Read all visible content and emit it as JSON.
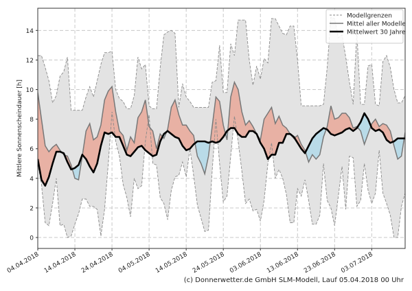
{
  "chart_data": {
    "type": "area",
    "title": "",
    "xlabel": "",
    "ylabel": "Mittlere Sonnenscheindauer [h]",
    "start_date": "04.04.2018",
    "x_tick_labels": [
      "04.04.2018",
      "14.04.2018",
      "24.04.2018",
      "04.05.2018",
      "14.05.2018",
      "24.05.2018",
      "03.06.2018",
      "13.06.2018",
      "23.06.2018",
      "03.07.2018"
    ],
    "y_ticks": [
      0,
      2,
      4,
      6,
      8,
      10,
      12,
      14
    ],
    "ylim": [
      -0.74,
      15.5
    ],
    "xlim": [
      "04.04.2018",
      "12.07.2018"
    ],
    "grid": true,
    "legend_position": "top-right",
    "legend": [
      "Modellgrenzen",
      "Mittel aller Modelle",
      "Mittelwert 30 Jahre"
    ],
    "colors": {
      "range_fill": "#e3e3e3",
      "above": "#e8b1a4",
      "below": "#b9dbe8",
      "model_mean": "#777777",
      "climate_mean": "#000000",
      "bounds": "#8a8a8a"
    },
    "series": [
      {
        "name": "Modellgrenzen (max)",
        "values": [
          12.3,
          12.3,
          11.5,
          10.6,
          9.1,
          9.6,
          10.9,
          11.2,
          12.2,
          8.6,
          8.6,
          8.6,
          8.6,
          9.5,
          10.2,
          9.5,
          10.6,
          11.7,
          12.5,
          12.5,
          12.6,
          10.0,
          9.4,
          9.2,
          8.7,
          8.7,
          9.6,
          12.2,
          11.4,
          11.7,
          8.9,
          8.7,
          8.7,
          11.5,
          13.7,
          13.9,
          14.0,
          13.8,
          8.8,
          10.4,
          9.5,
          9.2,
          8.8,
          8.8,
          8.8,
          8.8,
          8.8,
          10.5,
          10.6,
          13.0,
          9.8,
          9.8,
          13.1,
          12.3,
          14.7,
          14.7,
          14.7,
          12.0,
          10.3,
          11.6,
          10.7,
          12.1,
          11.8,
          14.8,
          14.8,
          14.3,
          13.8,
          13.7,
          14.3,
          14.3,
          12.0,
          8.9,
          8.9,
          8.9,
          8.9,
          8.9,
          8.9,
          9.0,
          11.5,
          14.9,
          14.8,
          13.5,
          13.7,
          12.2,
          10.5,
          9.0,
          13.9,
          9.0,
          9.0,
          11.6,
          11.7,
          9.0,
          8.9,
          11.9,
          12.3,
          11.5,
          10.0,
          9.1,
          9.1,
          9.6
        ]
      },
      {
        "name": "Modellgrenzen (min)",
        "values": [
          5.0,
          3.6,
          1.0,
          0.8,
          2.3,
          4.0,
          0.8,
          0.9,
          0.0,
          0.1,
          0.9,
          1.6,
          2.6,
          2.6,
          2.1,
          2.1,
          1.9,
          0.1,
          1.9,
          5.0,
          8.5,
          6.5,
          5.5,
          3.6,
          2.7,
          1.4,
          4.0,
          3.3,
          3.5,
          6.5,
          8.3,
          5.0,
          4.9,
          2.7,
          2.3,
          1.2,
          3.2,
          4.1,
          4.2,
          5.1,
          4.1,
          6.0,
          4.2,
          2.2,
          1.3,
          0.4,
          0.5,
          4.5,
          8.0,
          5.0,
          2.4,
          2.8,
          5.5,
          8.2,
          6.5,
          4.5,
          2.3,
          2.6,
          1.8,
          1.9,
          1.1,
          2.5,
          5.0,
          6.4,
          4.0,
          4.6,
          4.0,
          2.9,
          1.0,
          1.0,
          3.3,
          2.8,
          3.9,
          2.5,
          0.9,
          0.9,
          1.5,
          5.0,
          2.5,
          2.0,
          0.8,
          2.8,
          4.8,
          1.9,
          5.5,
          5.4,
          2.1,
          2.5,
          5.0,
          3.2,
          2.3,
          3.0,
          5.9,
          3.0,
          2.3,
          1.5,
          0.0,
          0.0,
          2.1,
          3.0
        ]
      },
      {
        "name": "Mittel aller Modelle",
        "values": [
          9.8,
          8.0,
          6.2,
          5.8,
          6.1,
          6.3,
          5.9,
          5.6,
          5.5,
          4.9,
          4.0,
          3.9,
          5.5,
          7.2,
          7.7,
          6.6,
          6.8,
          7.6,
          9.3,
          9.9,
          10.2,
          8.5,
          7.2,
          6.9,
          5.9,
          6.8,
          6.4,
          8.1,
          8.5,
          9.3,
          7.5,
          7.2,
          6.0,
          7.0,
          6.7,
          7.3,
          8.8,
          9.3,
          8.3,
          7.6,
          7.6,
          7.2,
          6.9,
          5.5,
          5.0,
          4.3,
          5.5,
          7.5,
          9.5,
          9.2,
          7.6,
          6.6,
          9.5,
          10.5,
          10.0,
          8.5,
          7.6,
          7.9,
          7.5,
          7.0,
          6.6,
          8.0,
          8.4,
          8.8,
          7.7,
          8.2,
          7.6,
          7.4,
          7.0,
          6.7,
          6.9,
          6.3,
          5.9,
          5.1,
          5.6,
          5.3,
          5.6,
          6.8,
          7.5,
          8.9,
          8.0,
          8.1,
          8.4,
          8.4,
          8.1,
          7.4,
          7.5,
          7.2,
          6.3,
          7.0,
          7.7,
          8.0,
          7.5,
          7.7,
          7.6,
          7.2,
          6.2,
          5.3,
          5.5,
          7.1
        ]
      },
      {
        "name": "Mittelwert 30 Jahre",
        "values": [
          5.3,
          3.9,
          3.5,
          4.1,
          5.0,
          5.8,
          5.8,
          5.7,
          5.1,
          4.6,
          4.7,
          4.9,
          5.6,
          5.3,
          4.8,
          4.4,
          5.0,
          6.2,
          7.1,
          7.0,
          7.1,
          6.8,
          6.8,
          6.2,
          5.6,
          5.5,
          5.8,
          6.1,
          6.2,
          5.9,
          5.7,
          5.5,
          5.6,
          6.5,
          7.0,
          7.2,
          7.0,
          6.8,
          6.7,
          6.2,
          5.9,
          6.0,
          6.3,
          6.5,
          6.5,
          6.5,
          6.4,
          6.5,
          6.4,
          6.5,
          6.8,
          7.2,
          7.4,
          7.4,
          7.0,
          6.8,
          6.8,
          7.2,
          7.2,
          7.0,
          6.4,
          6.0,
          5.3,
          5.6,
          5.6,
          6.4,
          6.4,
          7.0,
          7.0,
          6.8,
          6.4,
          6.0,
          5.7,
          6.2,
          6.7,
          7.0,
          7.2,
          7.4,
          7.3,
          7.0,
          6.9,
          7.0,
          7.1,
          7.3,
          7.4,
          7.2,
          7.4,
          7.8,
          8.4,
          8.0,
          7.4,
          7.2,
          7.3,
          7.1,
          6.6,
          6.4,
          6.5,
          6.7,
          6.7,
          6.7
        ]
      }
    ]
  },
  "footer": "(c) Donnerwetter.de GmbH SLM-Modell, Lauf 05.04.2018 00 Uhr"
}
